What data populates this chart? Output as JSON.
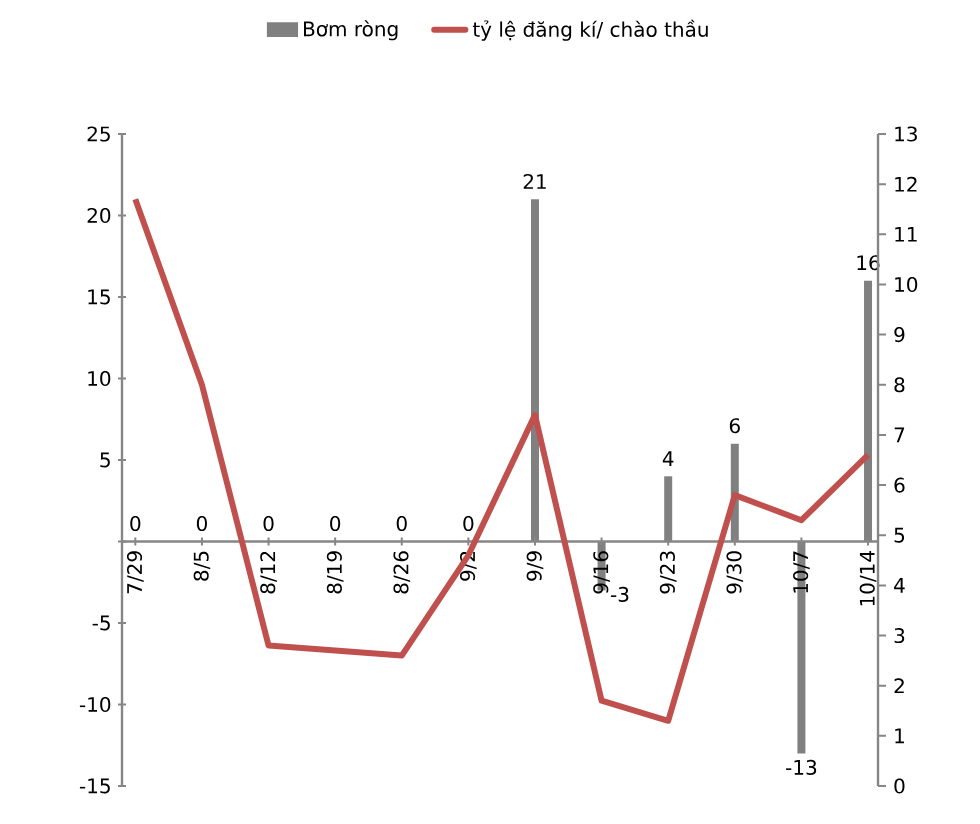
{
  "chart_data": {
    "type": "bar",
    "categories": [
      "7/29",
      "8/5",
      "8/12",
      "8/19",
      "8/26",
      "9/2",
      "9/9",
      "9/16",
      "9/23",
      "9/30",
      "10/7",
      "10/14"
    ],
    "series": [
      {
        "name": "Bơm ròng",
        "type": "bar",
        "color": "#808080",
        "values": [
          0,
          0,
          0,
          0,
          0,
          0,
          21,
          -3,
          4,
          6,
          -13,
          16
        ],
        "value_labels": [
          "0",
          "0",
          "0",
          "0",
          "0",
          "0",
          "21",
          "-3",
          "4",
          "6",
          "-13",
          "16"
        ]
      },
      {
        "name": "tỷ lệ đăng kí/ chào thầu",
        "type": "line",
        "axis": "y2",
        "color": "#c0504d",
        "values": [
          11.7,
          8.0,
          2.8,
          2.7,
          2.6,
          4.6,
          7.4,
          1.7,
          1.3,
          5.8,
          5.3,
          6.6
        ]
      }
    ],
    "ylim": [
      -15,
      25
    ],
    "yticks": [
      -15,
      -10,
      -5,
      {
        "value": 0,
        "label": null
      },
      5,
      10,
      15,
      20,
      25
    ],
    "y2lim": [
      0,
      13
    ],
    "y2ticks": [
      0,
      1,
      2,
      3,
      4,
      5,
      6,
      7,
      8,
      9,
      10,
      11,
      12,
      13
    ],
    "legend": "top",
    "grid": false
  }
}
